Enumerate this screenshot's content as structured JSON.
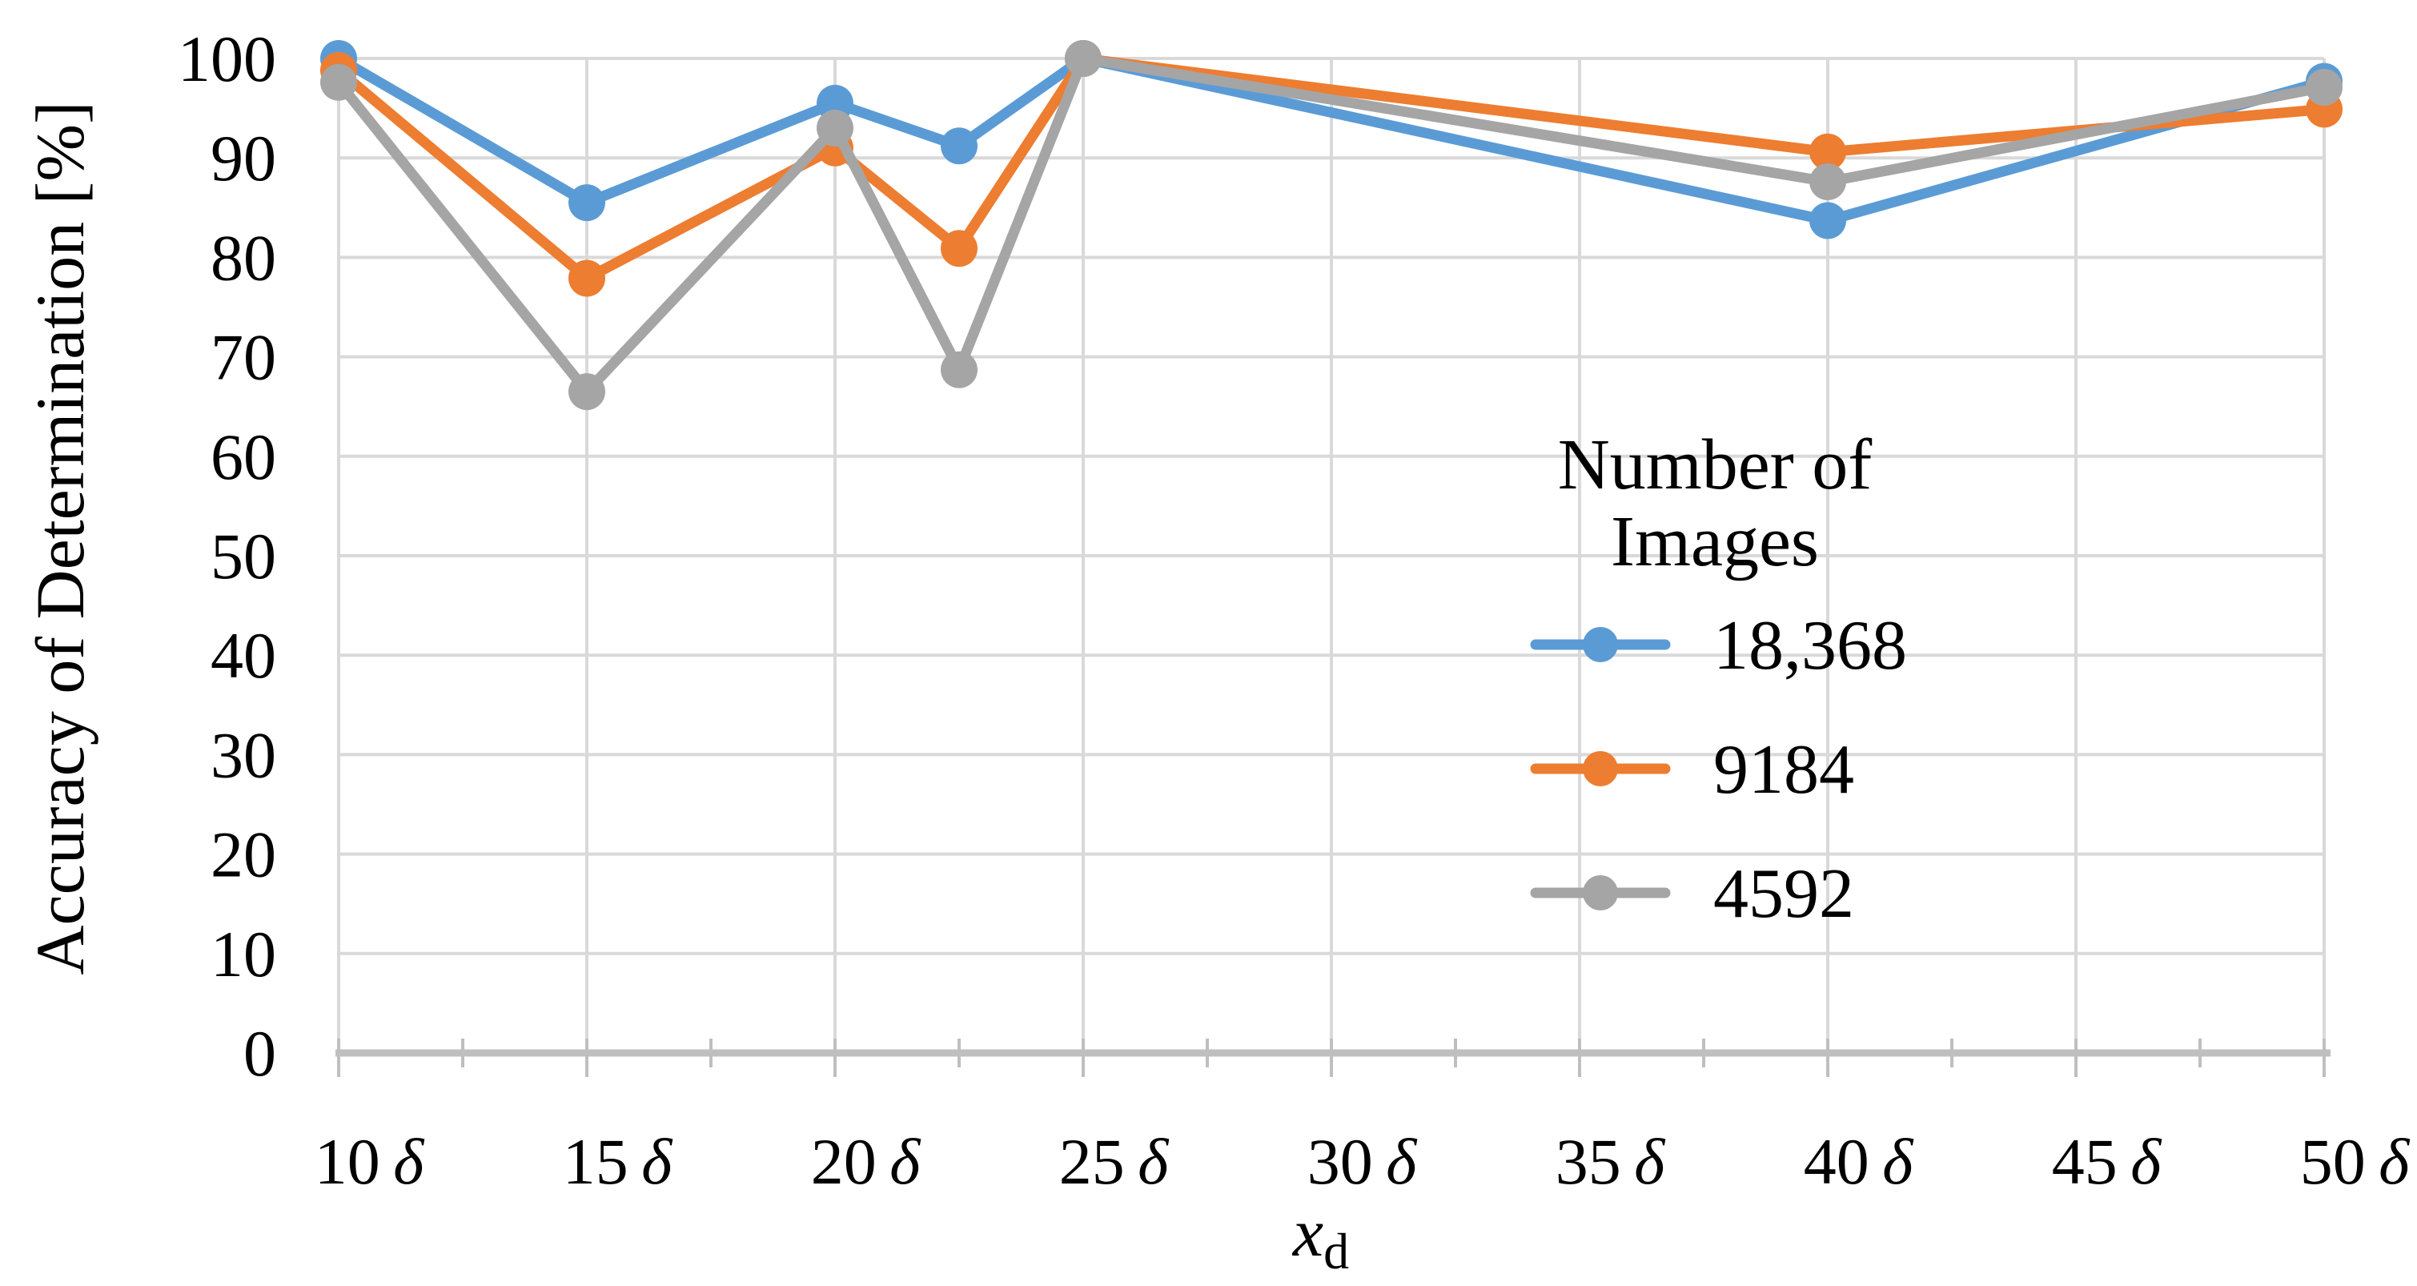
{
  "chart_data": {
    "type": "line",
    "title": "",
    "ylabel": "Accuracy of Determination [%]",
    "xlabel": {
      "base": "x",
      "sub": "d"
    },
    "x": [
      10,
      15,
      20,
      22.5,
      25,
      40,
      50
    ],
    "x_unit_symbol": "δ",
    "xtick_numbers": [
      "10",
      "15",
      "20",
      "25",
      "30",
      "35",
      "40",
      "45",
      "50"
    ],
    "xtick_positions": [
      10,
      15,
      20,
      25,
      30,
      35,
      40,
      45,
      50
    ],
    "ytick_labels": [
      "0",
      "10",
      "20",
      "30",
      "40",
      "50",
      "60",
      "70",
      "80",
      "90",
      "100"
    ],
    "ytick_values": [
      0,
      10,
      20,
      30,
      40,
      50,
      60,
      70,
      80,
      90,
      100
    ],
    "xlim": [
      10,
      50
    ],
    "ylim": [
      0,
      100
    ],
    "grid": {
      "gridline_color": "#D9D9D9",
      "axis_color": "#BFBFBF",
      "grid_on": true
    },
    "legend": {
      "title_lines": [
        "Number of",
        "Images"
      ],
      "position": "inside-right"
    },
    "series": [
      {
        "name": "18,368",
        "color": "#5B9BD5",
        "values": [
          100,
          85.5,
          95.5,
          91.2,
          100,
          83.7,
          97.7
        ]
      },
      {
        "name": "9184",
        "color": "#ED7D31",
        "values": [
          98.8,
          77.9,
          91.0,
          80.9,
          100,
          90.6,
          94.9
        ]
      },
      {
        "name": "4592",
        "color": "#A5A5A5",
        "values": [
          97.6,
          66.5,
          93.0,
          68.7,
          100,
          87.6,
          97.1
        ]
      }
    ]
  }
}
